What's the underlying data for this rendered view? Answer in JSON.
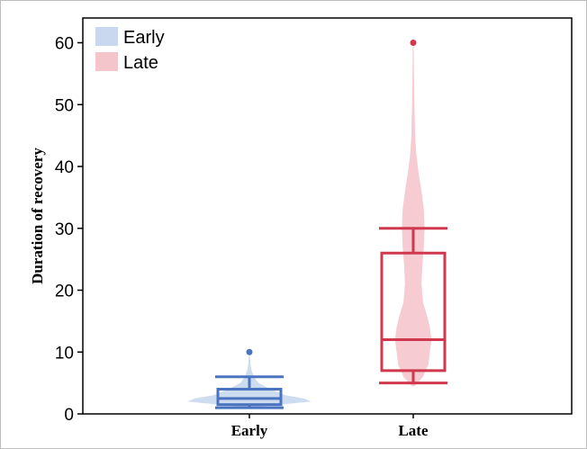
{
  "chart_data": {
    "type": "box-violin",
    "title": "",
    "xlabel": "",
    "ylabel": "Duration of recovery",
    "ylim": [
      0,
      64
    ],
    "yticks": [
      0,
      10,
      20,
      30,
      40,
      50,
      60
    ],
    "categories": [
      "Early",
      "Late"
    ],
    "grid": false,
    "legend": {
      "placement": "top-left",
      "entries": [
        "Early",
        "Late"
      ]
    },
    "series": [
      {
        "name": "Early",
        "color": "#4a73c0",
        "fill": "#c9d8ee",
        "box": {
          "whisker_low": 1,
          "q1": 1.5,
          "median": 2.5,
          "q3": 4,
          "whisker_high": 6
        },
        "outliers": [
          10
        ],
        "violin": [
          [
            1,
            0.02
          ],
          [
            1.5,
            0.4
          ],
          [
            2,
            0.82
          ],
          [
            2.5,
            0.72
          ],
          [
            3,
            0.48
          ],
          [
            4,
            0.28
          ],
          [
            5,
            0.12
          ],
          [
            6,
            0.06
          ],
          [
            7,
            0.03
          ],
          [
            8,
            0.015
          ],
          [
            9,
            0.008
          ],
          [
            10,
            0.003
          ]
        ]
      },
      {
        "name": "Late",
        "color": "#d0384e",
        "fill": "#f5c5cc",
        "box": {
          "whisker_low": 5,
          "q1": 7,
          "median": 12,
          "q3": 26,
          "whisker_high": 30
        },
        "outliers": [
          60
        ],
        "violin": [
          [
            4.5,
            0.02
          ],
          [
            6,
            0.13
          ],
          [
            8,
            0.2
          ],
          [
            10,
            0.22
          ],
          [
            12,
            0.24
          ],
          [
            14,
            0.22
          ],
          [
            16,
            0.18
          ],
          [
            18,
            0.13
          ],
          [
            21,
            0.11
          ],
          [
            24,
            0.12
          ],
          [
            27,
            0.14
          ],
          [
            30,
            0.15
          ],
          [
            33,
            0.14
          ],
          [
            36,
            0.11
          ],
          [
            39,
            0.07
          ],
          [
            42,
            0.04
          ],
          [
            45,
            0.025
          ],
          [
            50,
            0.015
          ],
          [
            55,
            0.01
          ],
          [
            60,
            0.005
          ]
        ]
      }
    ]
  }
}
